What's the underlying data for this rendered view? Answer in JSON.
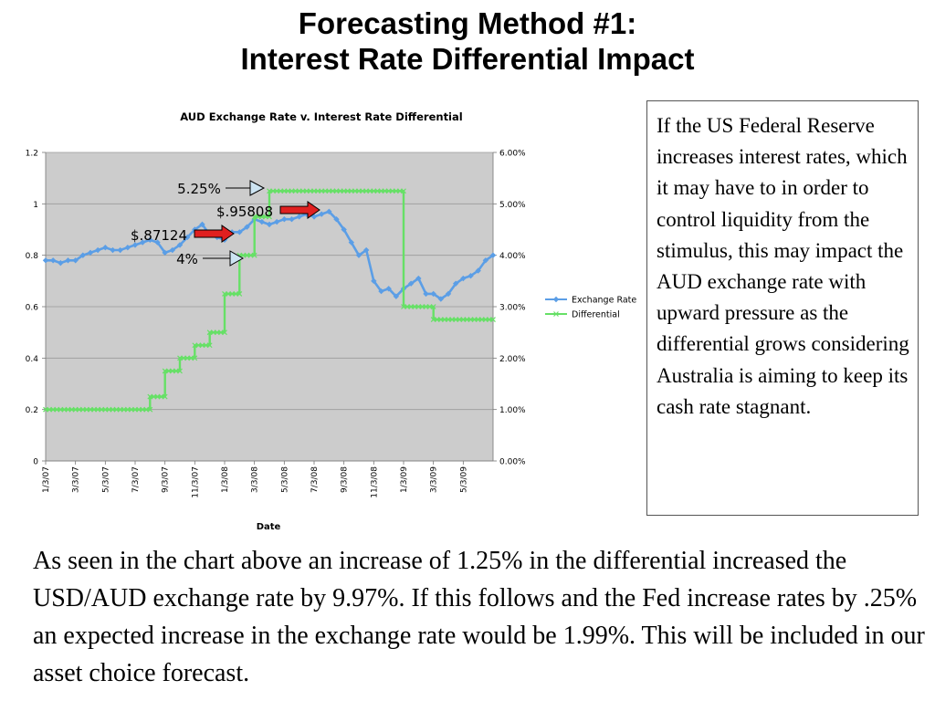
{
  "slide": {
    "title_line1": "Forecasting Method #1:",
    "title_line2": "Interest Rate Differential Impact",
    "side_text": "If the US Federal Reserve increases interest rates, which it may have to in order to control liquidity from the stimulus, this may impact the AUD exchange rate with upward pressure as the differential grows considering Australia is aiming to keep its cash rate stagnant.",
    "bottom_text": "As seen in the chart above an increase of 1.25% in the differential increased the USD/AUD exchange rate by 9.97%.  If this follows and the Fed increase rates by .25% an expected increase in the exchange rate would be 1.99%.  This will be included in our asset choice forecast."
  },
  "colors": {
    "plot_bg": "#cccccc",
    "exchange_rate": "#5b9ee6",
    "differential": "#66e066",
    "arrow_red": "#e02020",
    "arrow_light": "#cde4f2"
  },
  "chart_data": {
    "type": "line",
    "title": "AUD Exchange Rate v. Interest Rate Differential",
    "xlabel": "Date",
    "x_ticks": [
      "1/3/07",
      "3/3/07",
      "5/3/07",
      "7/3/07",
      "9/3/07",
      "11/3/07",
      "1/3/08",
      "3/3/08",
      "5/3/08",
      "7/3/08",
      "9/3/08",
      "11/3/08",
      "1/3/09",
      "3/3/09",
      "5/3/09"
    ],
    "x_range": [
      0,
      30
    ],
    "y_left": {
      "range": [
        0,
        1.2
      ],
      "ticks": [
        "0",
        "0.2",
        "0.4",
        "0.6",
        "0.8",
        "1",
        "1.2"
      ]
    },
    "y_right": {
      "range": [
        0,
        6
      ],
      "ticks": [
        "0.00%",
        "1.00%",
        "2.00%",
        "3.00%",
        "4.00%",
        "5.00%",
        "6.00%"
      ]
    },
    "legend_position": "right",
    "grid": true,
    "series": [
      {
        "name": "Exchange Rate",
        "axis": "left",
        "x": [
          0,
          0.5,
          1,
          1.5,
          2,
          2.5,
          3,
          3.5,
          4,
          4.5,
          5,
          5.5,
          6,
          6.5,
          7,
          7.5,
          8,
          8.5,
          9,
          9.5,
          10,
          10.5,
          11,
          11.5,
          12,
          12.5,
          13,
          13.5,
          14,
          14.5,
          15,
          15.5,
          16,
          16.5,
          17,
          17.5,
          18,
          18.5,
          19,
          19.5,
          20,
          20.5,
          21,
          21.5,
          22,
          22.5,
          23,
          23.5,
          24,
          24.5,
          25,
          25.5,
          26,
          26.5,
          27,
          27.5,
          28,
          28.5,
          29,
          29.5,
          30
        ],
        "y": [
          0.78,
          0.78,
          0.77,
          0.78,
          0.78,
          0.8,
          0.81,
          0.82,
          0.83,
          0.82,
          0.82,
          0.83,
          0.84,
          0.85,
          0.86,
          0.85,
          0.81,
          0.82,
          0.84,
          0.87,
          0.9,
          0.92,
          0.88,
          0.87,
          0.86,
          0.89,
          0.89,
          0.91,
          0.94,
          0.93,
          0.92,
          0.93,
          0.94,
          0.94,
          0.95,
          0.96,
          0.95,
          0.96,
          0.97,
          0.94,
          0.9,
          0.85,
          0.8,
          0.82,
          0.7,
          0.66,
          0.67,
          0.64,
          0.67,
          0.69,
          0.71,
          0.65,
          0.65,
          0.63,
          0.65,
          0.69,
          0.71,
          0.72,
          0.74,
          0.78,
          0.8
        ]
      },
      {
        "name": "Differential",
        "axis": "right",
        "x": [
          0,
          7,
          7,
          8,
          8,
          9,
          9,
          10,
          10,
          11,
          11,
          12,
          12,
          13,
          13,
          14,
          14,
          15,
          15,
          24,
          24,
          26,
          26,
          30
        ],
        "y": [
          1.0,
          1.0,
          1.25,
          1.25,
          1.75,
          1.75,
          2.0,
          2.0,
          2.25,
          2.25,
          2.5,
          2.5,
          3.25,
          3.25,
          4.0,
          4.0,
          4.75,
          4.75,
          5.25,
          5.25,
          3.0,
          3.0,
          2.75,
          2.75
        ]
      }
    ],
    "annotations": [
      {
        "text": "5.25%",
        "x": 14.5,
        "y": 5.25,
        "axis": "right",
        "arrow": "light"
      },
      {
        "text": "$.95808",
        "x": 18.3,
        "y": 0.96,
        "axis": "left",
        "arrow": "red"
      },
      {
        "text": "$.87124",
        "x": 11.0,
        "y": 0.88,
        "axis": "left",
        "arrow": "red"
      },
      {
        "text": "4%",
        "x": 13.0,
        "y": 4.0,
        "axis": "right",
        "arrow": "light"
      }
    ]
  }
}
